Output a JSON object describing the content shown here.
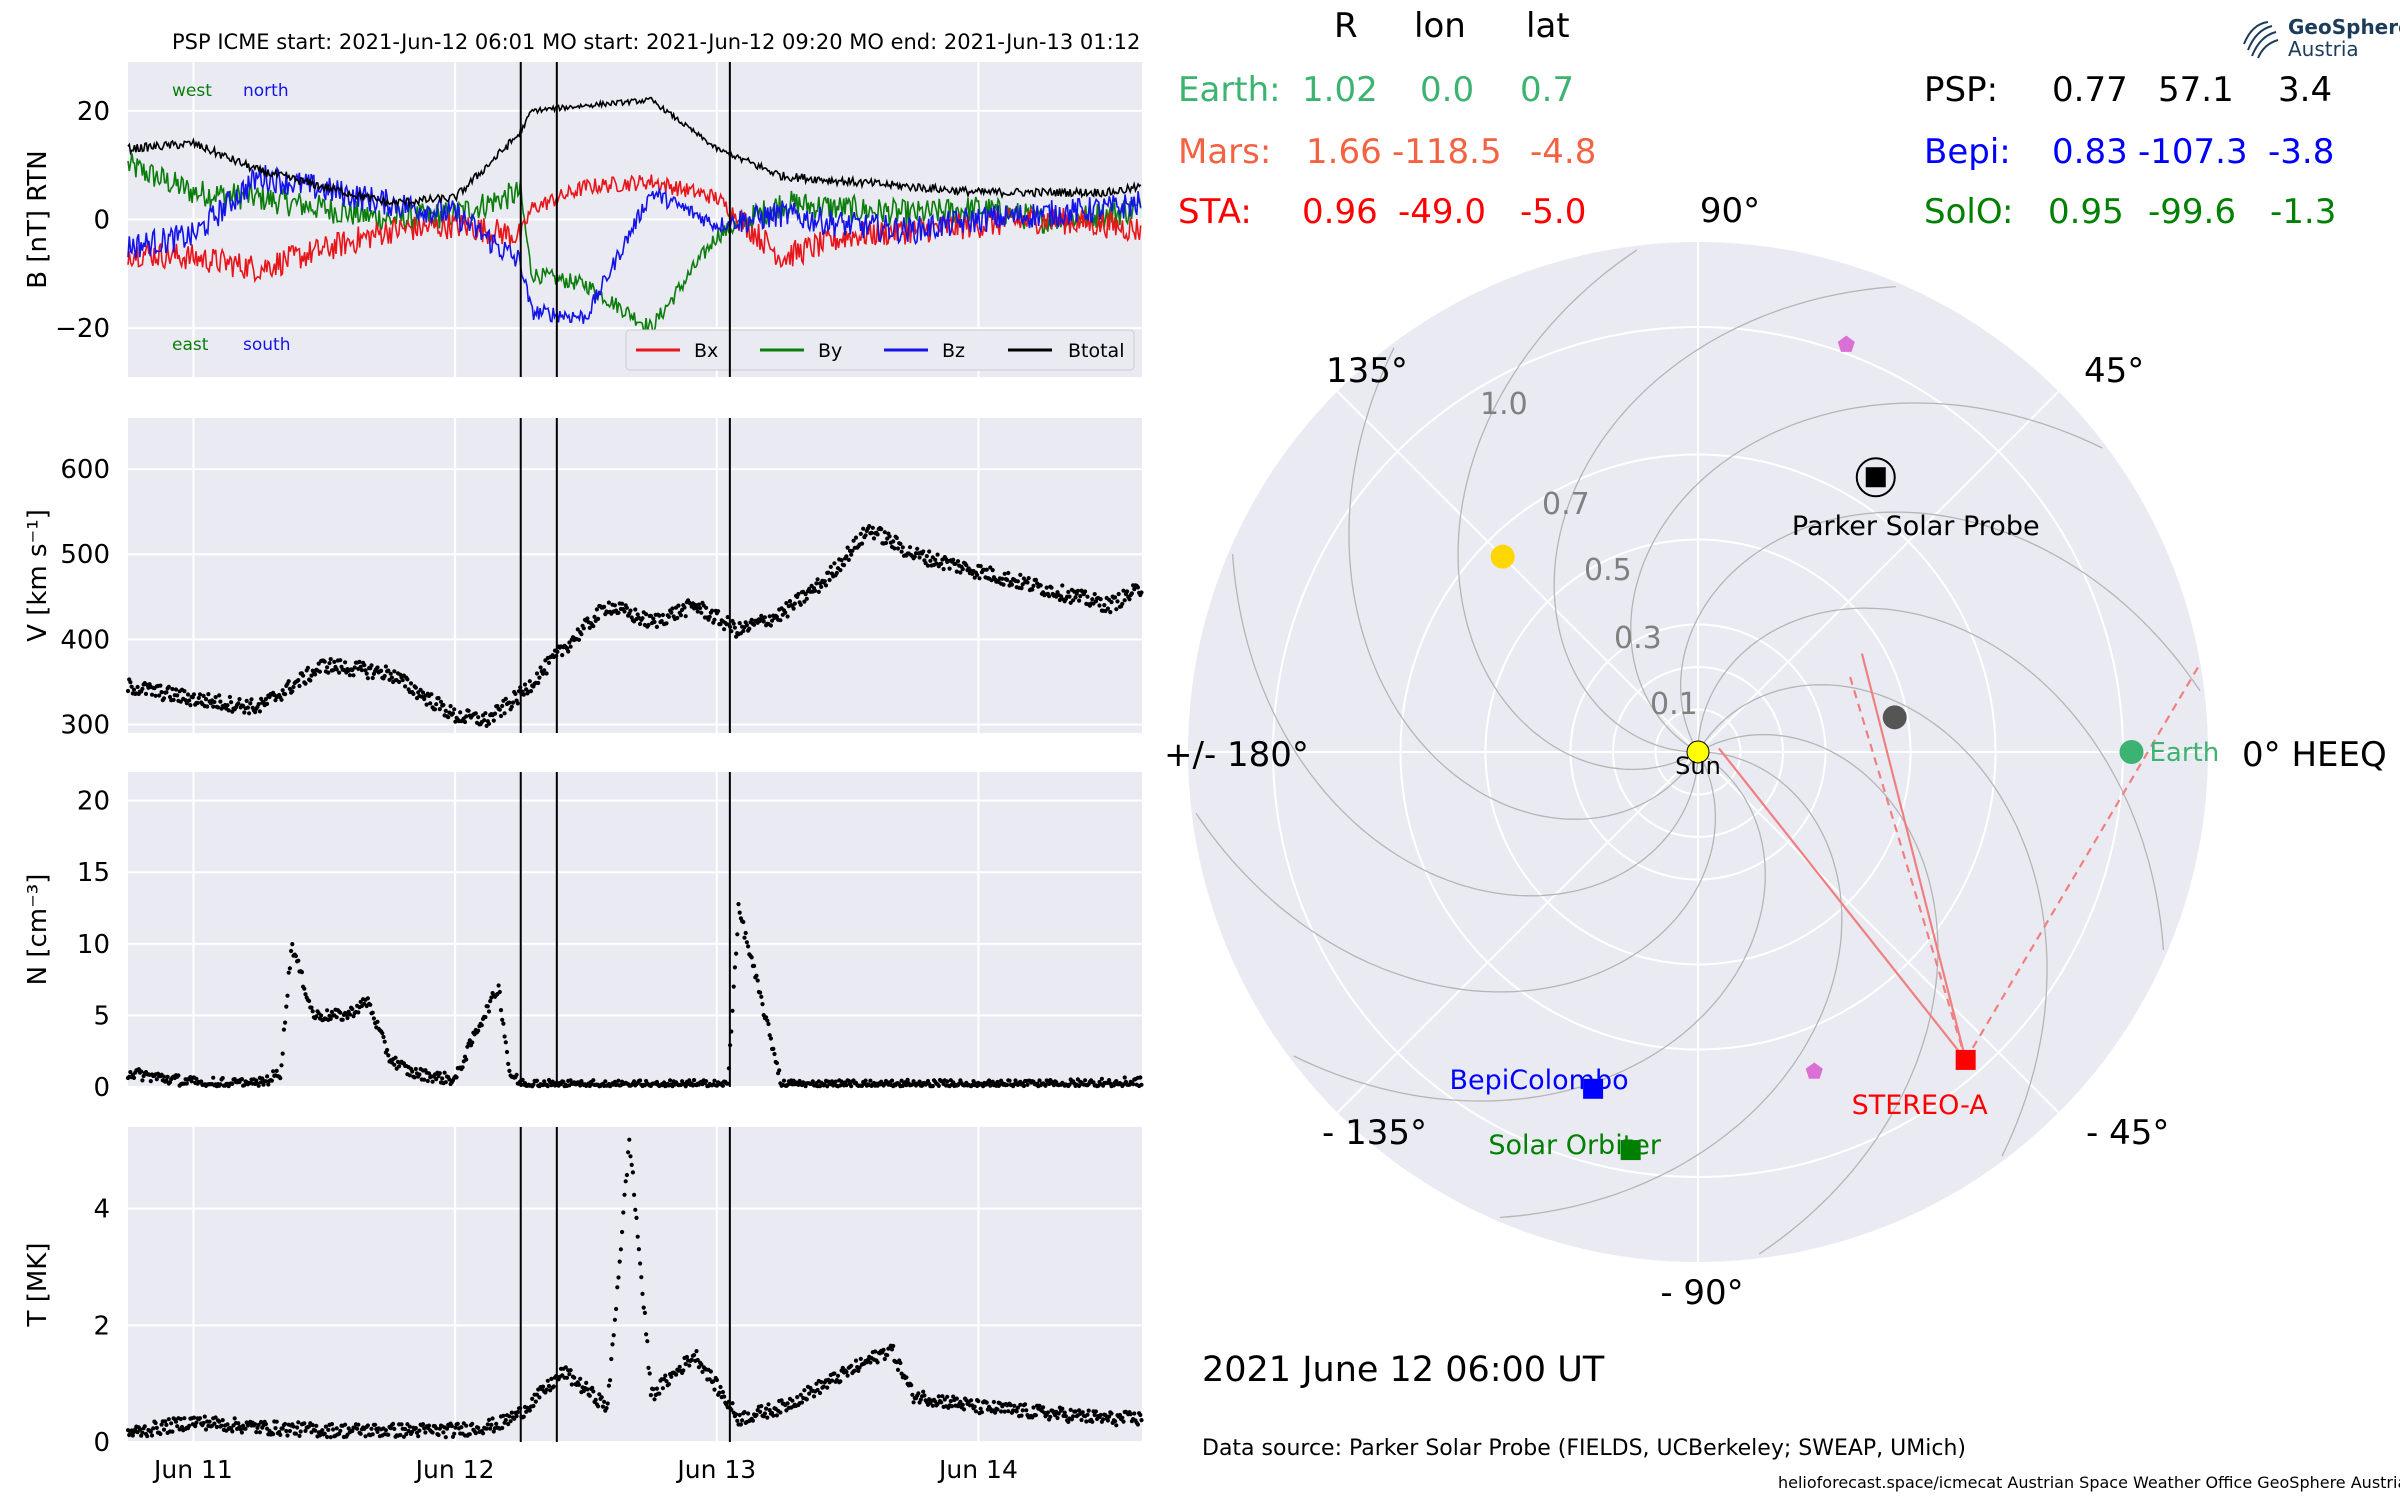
{
  "header": {
    "title": "PSP    ICME start: 2021-Jun-12 06:01   MO start: 2021-Jun-12 09:20   MO end: 2021-Jun-13 01:12"
  },
  "colors": {
    "bx": "#e8161a",
    "by": "#0b7d0b",
    "bz": "#1414e8",
    "btotal": "#000000",
    "earth": "#3cb371",
    "mars": "#f46242",
    "sta": "#ff0000",
    "bepi": "#0000ff",
    "solo": "#008000",
    "psp": "#000000",
    "panel_bg": "#eaeaf2",
    "cme_line": "#f08080"
  },
  "events": {
    "icme_start": "2021-06-12T06:01",
    "mo_start": "2021-06-12T09:20",
    "mo_end": "2021-06-13T01:12"
  },
  "positions": {
    "col_headers": [
      "R",
      "lon",
      "lat"
    ],
    "left": [
      {
        "name": "Earth:",
        "r": "1.02",
        "lon": "0.0",
        "lat": "0.7"
      },
      {
        "name": "Mars:",
        "r": "1.66",
        "lon": "-118.5",
        "lat": "-4.8"
      },
      {
        "name": "STA:",
        "r": "0.96",
        "lon": "-49.0",
        "lat": "-5.0"
      }
    ],
    "right": [
      {
        "name": "PSP:",
        "r": "0.77",
        "lon": "57.1",
        "lat": "3.4"
      },
      {
        "name": "Bepi:",
        "r": "0.83",
        "lon": "-107.3",
        "lat": "-3.8"
      },
      {
        "name": "SolO:",
        "r": "0.95",
        "lon": "-99.6",
        "lat": "-1.3"
      }
    ]
  },
  "polar": {
    "angle_labels": [
      "0° HEEQ",
      "45°",
      "90°",
      "135°",
      "+/- 180°",
      "- 135°",
      "- 90°",
      "- 45°"
    ],
    "radial_labels": [
      "0.1",
      "0.3",
      "0.5",
      "0.7",
      "1.0"
    ],
    "rmax": 1.2,
    "bodies": [
      {
        "label": "Sun",
        "lon": 0,
        "r": 0,
        "color": "#ffff00",
        "marker": "circle"
      },
      {
        "label": "Earth",
        "lon": 0.0,
        "r": 1.02,
        "color": "#3cb371",
        "marker": "circle"
      },
      {
        "label": "Parker Solar Probe",
        "lon": 57.1,
        "r": 0.77,
        "color": "#000000",
        "marker": "psp"
      },
      {
        "label": "STEREO-A",
        "lon": -49.0,
        "r": 0.96,
        "color": "#ff0000",
        "marker": "square"
      },
      {
        "label": "BepiColombo",
        "lon": -107.3,
        "r": 0.83,
        "color": "#0000ff",
        "marker": "square"
      },
      {
        "label": "Solar Orbiter",
        "lon": -99.6,
        "r": 0.95,
        "color": "#008000",
        "marker": "square"
      },
      {
        "label": "",
        "lon": 135,
        "r": 0.65,
        "color": "#ffd700",
        "marker": "circle"
      },
      {
        "label": "",
        "lon": 10,
        "r": 0.47,
        "color": "#555555",
        "marker": "circle"
      },
      {
        "label": "",
        "lon": 70,
        "r": 1.02,
        "color": "#da70d6",
        "marker": "pentagon"
      },
      {
        "label": "",
        "lon": -70,
        "r": 0.8,
        "color": "#da70d6",
        "marker": "pentagon"
      }
    ],
    "date": "2021 June 12  06:00 UT"
  },
  "footer": {
    "source": "Data source: Parker Solar Probe (FIELDS, UCBerkeley; SWEAP, UMich)",
    "credit": "helioforecast.space/icmecat   Austrian Space Weather Office   GeoSphere Austria"
  },
  "logo": {
    "line1": "GeoSphere",
    "line2": "Austria"
  },
  "chart_data": [
    {
      "type": "line",
      "ylabel": "B [nT] RTN",
      "ylim": [
        -29,
        29
      ],
      "yticks": [
        -20,
        0,
        20
      ],
      "xlim": [
        "2021-06-10T18:00",
        "2021-06-14T15:00"
      ],
      "xticks": [
        "Jun 11",
        "Jun 12",
        "Jun 13",
        "Jun 14"
      ],
      "corner_labels": {
        "top_left": "west",
        "top_right": "north",
        "bottom_left": "east",
        "bottom_right": "south"
      },
      "legend": {
        "placement": "lower-right",
        "entries": [
          "Bx",
          "By",
          "Bz",
          "Btotal"
        ]
      },
      "series": [
        {
          "name": "Bx",
          "x_hours": [
            0,
            6,
            12,
            24,
            30,
            36,
            37,
            42,
            48,
            54,
            60,
            66,
            72,
            78,
            84,
            90,
            93
          ],
          "y": [
            -6,
            -7,
            -9,
            -2,
            -1,
            -3,
            2,
            6,
            7,
            4,
            -7,
            -3,
            -2,
            -1,
            0,
            -1,
            -2
          ]
        },
        {
          "name": "By",
          "x_hours": [
            0,
            6,
            12,
            24,
            30,
            36,
            37,
            42,
            48,
            54,
            60,
            66,
            72,
            78,
            84,
            90,
            93
          ],
          "y": [
            10,
            5,
            4,
            0,
            1,
            5,
            -10,
            -12,
            -20,
            -3,
            3,
            2,
            1,
            2,
            0,
            1,
            2
          ]
        },
        {
          "name": "Bz",
          "x_hours": [
            0,
            6,
            12,
            24,
            30,
            36,
            37,
            42,
            48,
            54,
            60,
            66,
            72,
            78,
            84,
            90,
            93
          ],
          "y": [
            -5,
            -3,
            8,
            3,
            1,
            -8,
            -17,
            -18,
            5,
            -1,
            1,
            -1,
            -2,
            0,
            1,
            2,
            3
          ]
        },
        {
          "name": "Btotal",
          "x_hours": [
            0,
            6,
            12,
            24,
            30,
            36,
            37,
            42,
            48,
            54,
            60,
            66,
            72,
            78,
            84,
            90,
            93
          ],
          "y": [
            13,
            14,
            9,
            3,
            4,
            16,
            20,
            21,
            22,
            13,
            8,
            7,
            6,
            5,
            5,
            5,
            6
          ]
        }
      ]
    },
    {
      "type": "scatter",
      "ylabel": "V [km s⁻¹]",
      "ylim": [
        290,
        660
      ],
      "yticks": [
        300,
        400,
        500,
        600
      ],
      "x_hours": [
        0,
        6,
        12,
        18,
        24,
        30,
        33,
        36,
        40,
        44,
        48,
        52,
        56,
        60,
        64,
        68,
        72,
        78,
        84,
        90,
        93
      ],
      "y": [
        345,
        330,
        320,
        370,
        360,
        310,
        305,
        335,
        390,
        440,
        420,
        440,
        410,
        430,
        470,
        530,
        500,
        480,
        460,
        440,
        460
      ]
    },
    {
      "type": "scatter",
      "ylabel": "N [cm⁻³]",
      "ylim": [
        0,
        22
      ],
      "yticks": [
        0,
        5,
        10,
        15,
        20
      ],
      "x_hours": [
        0,
        6,
        12,
        14,
        15,
        17,
        20,
        22,
        24,
        26,
        30,
        32,
        34,
        35,
        36,
        40,
        48,
        55,
        56,
        60,
        72,
        84,
        93
      ],
      "y": [
        1,
        0.3,
        0.2,
        1,
        10,
        5,
        5,
        6,
        2,
        1,
        0.5,
        4,
        7,
        1,
        0.2,
        0.1,
        0.1,
        0.1,
        12.5,
        0.1,
        0.1,
        0.1,
        0.3
      ]
    },
    {
      "type": "scatter",
      "ylabel": "T [MK]",
      "ylim": [
        0,
        5.4
      ],
      "yticks": [
        0,
        2,
        4
      ],
      "x_hours": [
        0,
        6,
        12,
        18,
        24,
        30,
        34,
        36,
        40,
        44,
        46,
        48,
        52,
        56,
        60,
        66,
        70,
        72,
        78,
        84,
        90,
        93
      ],
      "y": [
        0.15,
        0.35,
        0.25,
        0.2,
        0.2,
        0.2,
        0.3,
        0.5,
        1.2,
        0.6,
        5.2,
        0.8,
        1.5,
        0.4,
        0.6,
        1.2,
        1.6,
        0.8,
        0.6,
        0.5,
        0.4,
        0.4
      ]
    }
  ]
}
